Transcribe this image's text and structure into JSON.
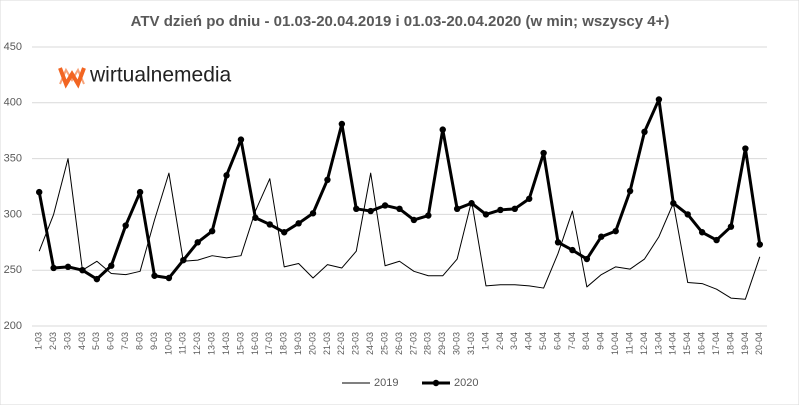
{
  "logo": "wirtualnemedia",
  "chart_data": {
    "type": "line",
    "title": "ATV dzień po dniu - 01.03-20.04.2019 i 01.03-20.04.2020 (w min; wszyscy 4+)",
    "categories": [
      "1-03",
      "2-03",
      "3-03",
      "4-03",
      "5-03",
      "6-03",
      "7-03",
      "8-03",
      "9-03",
      "10-03",
      "11-03",
      "12-03",
      "13-03",
      "14-03",
      "15-03",
      "16-03",
      "17-03",
      "18-03",
      "19-03",
      "20-03",
      "21-03",
      "22-03",
      "23-03",
      "24-03",
      "25-03",
      "26-03",
      "27-03",
      "28-03",
      "29-03",
      "30-03",
      "31-03",
      "1-04",
      "2-04",
      "3-04",
      "4-04",
      "5-04",
      "6-04",
      "7-04",
      "8-04",
      "9-04",
      "10-04",
      "11-04",
      "12-04",
      "13-04",
      "14-04",
      "15-04",
      "16-04",
      "17-04",
      "18-04",
      "19-04",
      "20-04"
    ],
    "series": [
      {
        "name": "2019",
        "color": "#000000",
        "marker": false,
        "values": [
          267,
          300,
          350,
          250,
          258,
          247,
          246,
          249,
          295,
          337,
          258,
          259,
          263,
          261,
          263,
          303,
          332,
          253,
          256,
          243,
          255,
          252,
          267,
          337,
          254,
          258,
          249,
          245,
          245,
          260,
          312,
          236,
          237,
          237,
          236,
          234,
          265,
          303,
          235,
          246,
          253,
          251,
          260,
          280,
          310,
          239,
          238,
          233,
          225,
          224,
          262
        ]
      },
      {
        "name": "2020",
        "color": "#000000",
        "marker": true,
        "values": [
          320,
          252,
          253,
          250,
          242,
          254,
          290,
          320,
          245,
          243,
          259,
          275,
          285,
          335,
          367,
          297,
          291,
          284,
          292,
          301,
          331,
          381,
          305,
          303,
          308,
          305,
          295,
          299,
          376,
          305,
          310,
          300,
          304,
          305,
          314,
          355,
          275,
          268,
          260,
          280,
          285,
          321,
          374,
          403,
          310,
          300,
          284,
          277,
          289,
          359,
          273
        ]
      }
    ],
    "ylim": [
      200,
      450
    ],
    "yticks": [
      200,
      250,
      300,
      350,
      400,
      450
    ],
    "grid": true,
    "legend": "bottom"
  }
}
